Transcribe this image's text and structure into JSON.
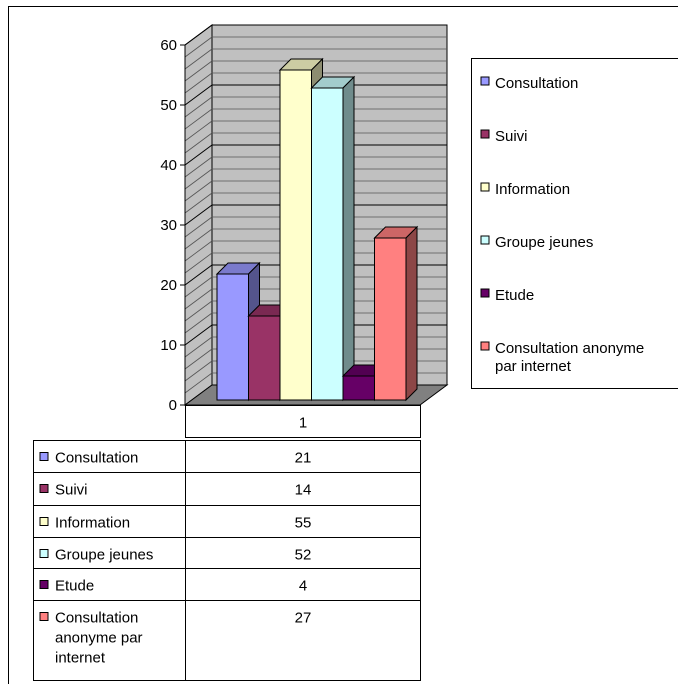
{
  "chart_data": {
    "type": "bar",
    "style": "3d-clustered-column-with-data-table",
    "categories": [
      "1"
    ],
    "series": [
      {
        "name": "Consultation",
        "values": [
          21
        ],
        "color": "#9999FF"
      },
      {
        "name": "Suivi",
        "values": [
          14
        ],
        "color": "#993366"
      },
      {
        "name": "Information",
        "values": [
          55
        ],
        "color": "#FFFFCC"
      },
      {
        "name": "Groupe jeunes",
        "values": [
          52
        ],
        "color": "#CCFFFF"
      },
      {
        "name": "Etude",
        "values": [
          4
        ],
        "color": "#660066"
      },
      {
        "name": "Consultation anonyme par internet",
        "values": [
          27
        ],
        "color": "#FF8080"
      }
    ],
    "yticks": [
      "0",
      "10",
      "20",
      "30",
      "40",
      "50",
      "60"
    ],
    "ylim": [
      0,
      60
    ],
    "grid": true,
    "wall_color": "#C0C0C0",
    "floor_color": "#808080",
    "legend_position": "right",
    "legend_labels": [
      [
        "Consultation"
      ],
      [
        "Suivi"
      ],
      [
        "Information"
      ],
      [
        "Groupe jeunes"
      ],
      [
        "Etude"
      ],
      [
        "Consultation anonyme",
        "par internet"
      ]
    ],
    "table_labels": [
      [
        "Consultation"
      ],
      [
        "Suivi"
      ],
      [
        "Information"
      ],
      [
        "Groupe jeunes"
      ],
      [
        "Etude"
      ],
      [
        "Consultation",
        "anonyme par",
        "internet"
      ]
    ],
    "table_header": "1",
    "table_values": [
      "21",
      "14",
      "55",
      "52",
      "4",
      "27"
    ],
    "title": "",
    "xlabel": "",
    "ylabel": ""
  }
}
